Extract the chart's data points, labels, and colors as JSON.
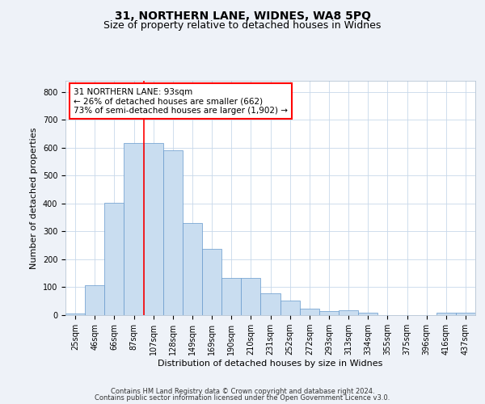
{
  "title": "31, NORTHERN LANE, WIDNES, WA8 5PQ",
  "subtitle": "Size of property relative to detached houses in Widnes",
  "xlabel": "Distribution of detached houses by size in Widnes",
  "ylabel": "Number of detached properties",
  "bar_labels": [
    "25sqm",
    "46sqm",
    "66sqm",
    "87sqm",
    "107sqm",
    "128sqm",
    "149sqm",
    "169sqm",
    "190sqm",
    "210sqm",
    "231sqm",
    "252sqm",
    "272sqm",
    "293sqm",
    "313sqm",
    "334sqm",
    "355sqm",
    "375sqm",
    "396sqm",
    "416sqm",
    "437sqm"
  ],
  "bar_values": [
    7,
    106,
    403,
    617,
    617,
    591,
    330,
    238,
    134,
    134,
    78,
    53,
    22,
    15,
    18,
    8,
    0,
    0,
    0,
    8,
    8
  ],
  "bar_color": "#c9ddf0",
  "bar_edge_color": "#6699cc",
  "vline_pos": 3.5,
  "annotation_text": "31 NORTHERN LANE: 93sqm\n← 26% of detached houses are smaller (662)\n73% of semi-detached houses are larger (1,902) →",
  "ylim": [
    0,
    840
  ],
  "yticks": [
    0,
    100,
    200,
    300,
    400,
    500,
    600,
    700,
    800
  ],
  "footer1": "Contains HM Land Registry data © Crown copyright and database right 2024.",
  "footer2": "Contains public sector information licensed under the Open Government Licence v3.0.",
  "background_color": "#eef2f8",
  "plot_background": "#ffffff",
  "title_fontsize": 10,
  "subtitle_fontsize": 9,
  "ylabel_fontsize": 8,
  "xlabel_fontsize": 8,
  "tick_fontsize": 7,
  "footer_fontsize": 6
}
